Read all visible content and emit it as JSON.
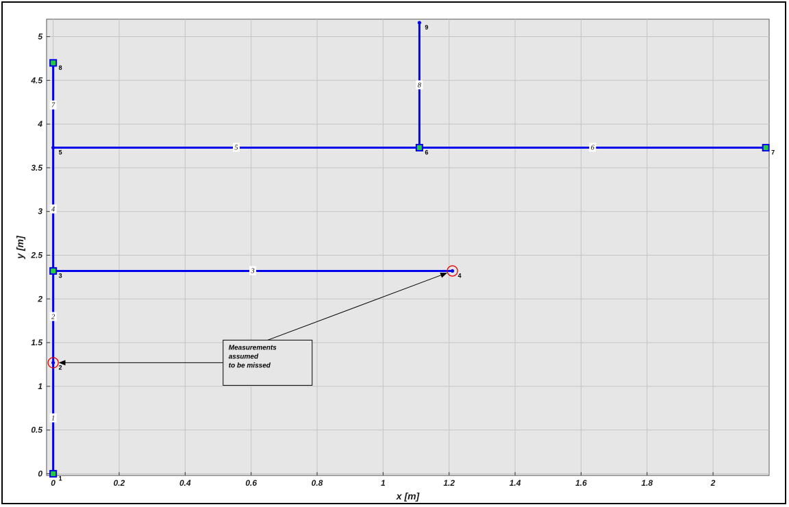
{
  "chart_data": {
    "type": "scatter",
    "xlabel": "x  [m]",
    "ylabel": "y  [m]",
    "xlim": [
      -0.02,
      2.17
    ],
    "ylim": [
      -0.02,
      5.2
    ],
    "grid": true,
    "x_ticks": [
      0,
      0.2,
      0.4,
      0.6,
      0.8,
      1,
      1.2,
      1.4,
      1.6,
      1.8,
      2
    ],
    "x_tick_labels": [
      "0",
      "0.2",
      "0.4",
      "0.6",
      "0.8",
      "1",
      "1.2",
      "1.4",
      "1.6",
      "1.8",
      "2"
    ],
    "y_ticks": [
      0,
      0.5,
      1,
      1.5,
      2,
      2.5,
      3,
      3.5,
      4,
      4.5,
      5
    ],
    "y_tick_labels": [
      "0",
      "0.5",
      "1",
      "1.5",
      "2",
      "2.5",
      "3",
      "3.5",
      "4",
      "4.5",
      "5"
    ],
    "nodes": [
      {
        "id": "1",
        "x": 0,
        "y": 0,
        "marker": "square"
      },
      {
        "id": "2",
        "x": 0,
        "y": 1.27,
        "marker": "dot",
        "missed": true
      },
      {
        "id": "3",
        "x": 0,
        "y": 2.32,
        "marker": "square"
      },
      {
        "id": "4",
        "x": 1.21,
        "y": 2.32,
        "marker": "dot",
        "missed": true
      },
      {
        "id": "5",
        "x": 0,
        "y": 3.73,
        "marker": "dot"
      },
      {
        "id": "6",
        "x": 1.11,
        "y": 3.73,
        "marker": "square"
      },
      {
        "id": "7",
        "x": 2.16,
        "y": 3.73,
        "marker": "square"
      },
      {
        "id": "8",
        "x": 0,
        "y": 4.7,
        "marker": "square"
      },
      {
        "id": "9",
        "x": 1.11,
        "y": 5.16,
        "marker": "dot"
      }
    ],
    "segments": [
      {
        "id": "1",
        "from": 0,
        "to": 1
      },
      {
        "id": "2",
        "from": 1,
        "to": 2
      },
      {
        "id": "3",
        "from": 2,
        "to": 3
      },
      {
        "id": "4",
        "from": 2,
        "to": 4
      },
      {
        "id": "5",
        "from": 4,
        "to": 5
      },
      {
        "id": "6",
        "from": 5,
        "to": 6
      },
      {
        "id": "7",
        "from": 4,
        "to": 7
      },
      {
        "id": "8",
        "from": 5,
        "to": 8
      }
    ],
    "annotation": {
      "lines": [
        "Measurements",
        "assumed",
        "to be missed"
      ],
      "box_x": 0.65,
      "box_y": 1.27,
      "targets": [
        1,
        3
      ]
    },
    "colors": {
      "line": "#0000ee",
      "node_fill": "#22cc44",
      "missed_circle": "#ee0000",
      "plot_bg": "#e6e6e6",
      "grid": "#c4c4c4"
    }
  }
}
